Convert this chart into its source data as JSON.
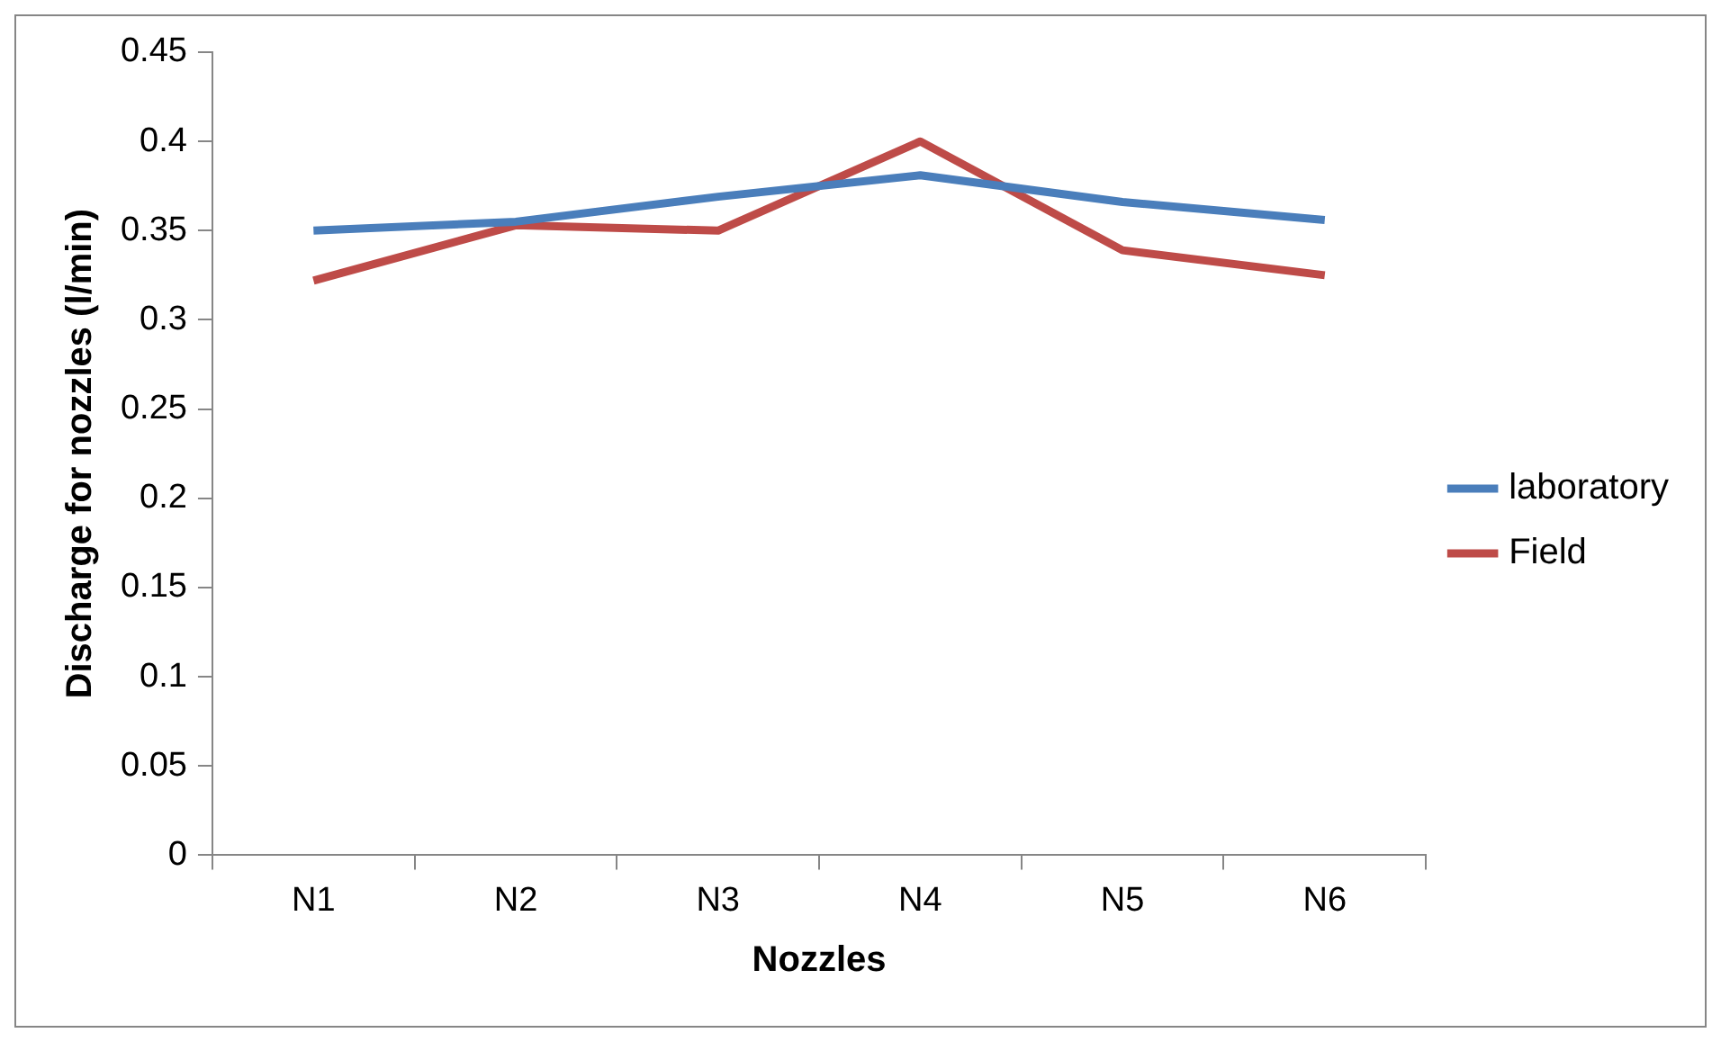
{
  "chart_data": {
    "type": "line",
    "xlabel": "Nozzles",
    "ylabel": "Discharge for nozzles (l/min)",
    "categories": [
      "N1",
      "N2",
      "N3",
      "N4",
      "N5",
      "N6"
    ],
    "series": [
      {
        "name": "laboratory",
        "color": "#4a7ebb",
        "values": [
          0.35,
          0.355,
          0.369,
          0.381,
          0.366,
          0.356
        ]
      },
      {
        "name": "Field",
        "color": "#be4b48",
        "values": [
          0.322,
          0.353,
          0.35,
          0.4,
          0.339,
          0.325
        ]
      }
    ],
    "ylim": [
      0,
      0.45
    ],
    "yticks": [
      0,
      0.05,
      0.1,
      0.15,
      0.2,
      0.25,
      0.3,
      0.35,
      0.4,
      0.45
    ],
    "grid": false,
    "legend": "right",
    "marker": "none",
    "line_style": "solid"
  }
}
